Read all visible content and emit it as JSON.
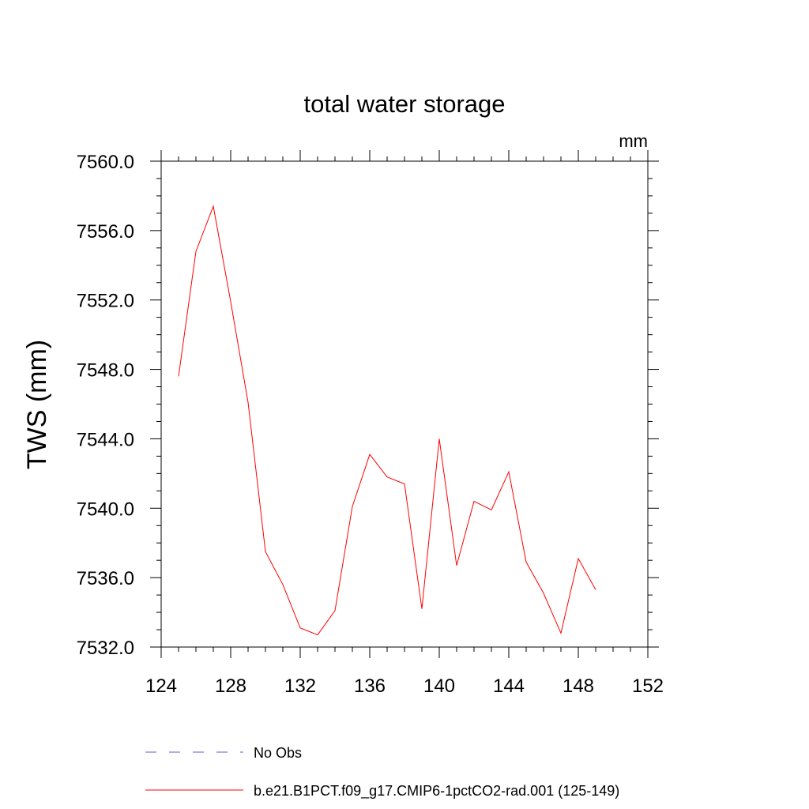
{
  "chart_data": {
    "type": "line",
    "title": "total water storage",
    "units_label": "mm",
    "ylabel": "TWS  (mm)",
    "xlabel": "",
    "xlim": [
      124,
      152
    ],
    "ylim": [
      7532,
      7560
    ],
    "x_ticks": [
      124,
      128,
      132,
      136,
      140,
      144,
      148,
      152
    ],
    "y_ticks": [
      7532,
      7536,
      7540,
      7544,
      7548,
      7552,
      7556,
      7560
    ],
    "x_tick_labels": [
      "124",
      "128",
      "132",
      "136",
      "140",
      "144",
      "148",
      "152"
    ],
    "y_tick_labels": [
      "7532.0",
      "7536.0",
      "7540.0",
      "7544.0",
      "7548.0",
      "7552.0",
      "7556.0",
      "7560.0"
    ],
    "grid": false,
    "legend_position": "bottom",
    "legend": [
      {
        "label": "No Obs",
        "color": "#6a5acd",
        "dash": "dashed"
      },
      {
        "label": "b.e21.B1PCT.f09_g17.CMIP6-1pctCO2-rad.001 (125-149)",
        "color": "#ff0000",
        "dash": "solid"
      }
    ],
    "series": [
      {
        "name": "b.e21.B1PCT.f09_g17.CMIP6-1pctCO2-rad.001 (125-149)",
        "color": "#ff0000",
        "x": [
          125,
          126,
          127,
          128,
          129,
          130,
          131,
          132,
          133,
          134,
          135,
          136,
          137,
          138,
          139,
          140,
          141,
          142,
          143,
          144,
          145,
          146,
          147,
          148,
          149
        ],
        "y": [
          7547.6,
          7554.8,
          7557.4,
          7551.9,
          7546.1,
          7537.5,
          7535.6,
          7533.1,
          7532.7,
          7534.1,
          7540.1,
          7543.1,
          7541.8,
          7541.4,
          7534.2,
          7544.0,
          7536.7,
          7540.4,
          7539.9,
          7542.1,
          7536.9,
          7535.1,
          7532.8,
          7537.1,
          7535.3
        ]
      }
    ]
  }
}
